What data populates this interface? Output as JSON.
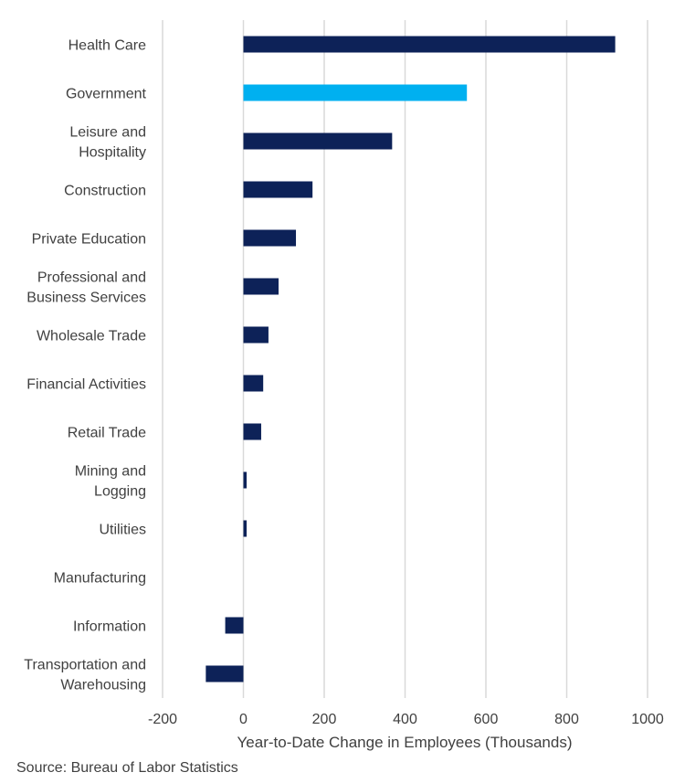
{
  "chart_data": {
    "type": "bar",
    "orientation": "horizontal",
    "categories": [
      [
        "Health Care"
      ],
      [
        "Government"
      ],
      [
        "Leisure and",
        "Hospitality"
      ],
      [
        "Construction"
      ],
      [
        "Private Education"
      ],
      [
        "Professional and",
        "Business Services"
      ],
      [
        "Wholesale Trade"
      ],
      [
        "Financial Activities"
      ],
      [
        "Retail Trade"
      ],
      [
        "Mining and",
        "Logging"
      ],
      [
        "Utilities"
      ],
      [
        "Manufacturing"
      ],
      [
        "Information"
      ],
      [
        "Transportation and",
        "Warehousing"
      ]
    ],
    "values": [
      920,
      553,
      368,
      171,
      130,
      87,
      62,
      49,
      44,
      8,
      8,
      0,
      -45,
      -93
    ],
    "colors": [
      "#0d2258",
      "#00b0f0",
      "#0d2258",
      "#0d2258",
      "#0d2258",
      "#0d2258",
      "#0d2258",
      "#0d2258",
      "#0d2258",
      "#0d2258",
      "#0d2258",
      "#0d2258",
      "#0d2258",
      "#0d2258"
    ],
    "xlabel": "Year-to-Date Change in Employees (Thousands)",
    "xlim": [
      -200,
      1000
    ],
    "xticks": [
      -200,
      0,
      200,
      400,
      600,
      800,
      1000
    ],
    "grid": true,
    "source": "Source: Bureau of Labor Statistics"
  }
}
